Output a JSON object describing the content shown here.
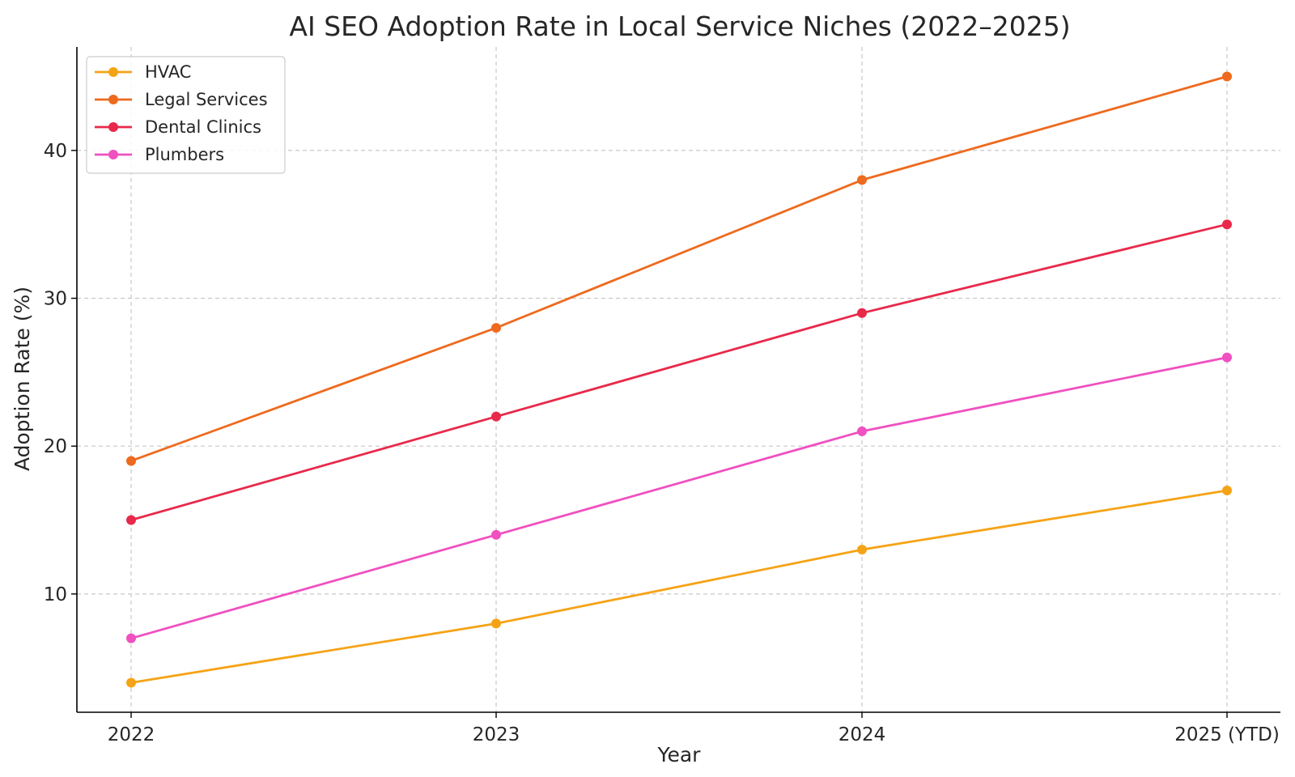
{
  "chart_data": {
    "type": "line",
    "title": "AI SEO Adoption Rate in Local Service Niches (2022–2025)",
    "xlabel": "Year",
    "ylabel": "Adoption Rate (%)",
    "categories": [
      "2022",
      "2023",
      "2024",
      "2025 (YTD)"
    ],
    "yticks": [
      10,
      20,
      30,
      40
    ],
    "ylim": [
      2,
      47
    ],
    "grid": true,
    "legend_position": "top-left",
    "series": [
      {
        "name": "HVAC",
        "color": "#f5a316",
        "values": [
          4,
          8,
          13,
          17
        ]
      },
      {
        "name": "Legal Services",
        "color": "#ee6a1e",
        "values": [
          19,
          28,
          38,
          45
        ]
      },
      {
        "name": "Dental Clinics",
        "color": "#e8294a",
        "values": [
          15,
          22,
          29,
          35
        ]
      },
      {
        "name": "Plumbers",
        "color": "#f050c0",
        "values": [
          7,
          14,
          21,
          26
        ]
      }
    ]
  }
}
